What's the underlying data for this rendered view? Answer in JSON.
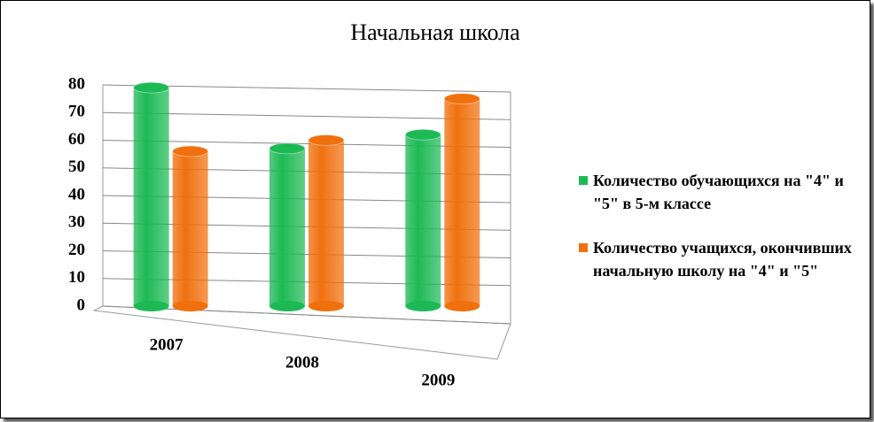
{
  "chart_data": {
    "type": "bar",
    "title": "Начальная школа",
    "categories": [
      "2007",
      "2008",
      "2009"
    ],
    "series": [
      {
        "name": "Количество обучающихся на \"4\" и \"5\" в 5-м классе",
        "color": "#1db954",
        "values": [
          79,
          57,
          62
        ]
      },
      {
        "name": "Количество учащихся, окончивших начальную школу на \"4\" и \"5\"",
        "color": "#f0700e",
        "values": [
          56,
          60,
          75
        ]
      }
    ],
    "ylim": [
      0,
      80
    ],
    "yticks": [
      0,
      10,
      20,
      30,
      40,
      50,
      60,
      70,
      80
    ],
    "grid": true,
    "legend": "right"
  }
}
